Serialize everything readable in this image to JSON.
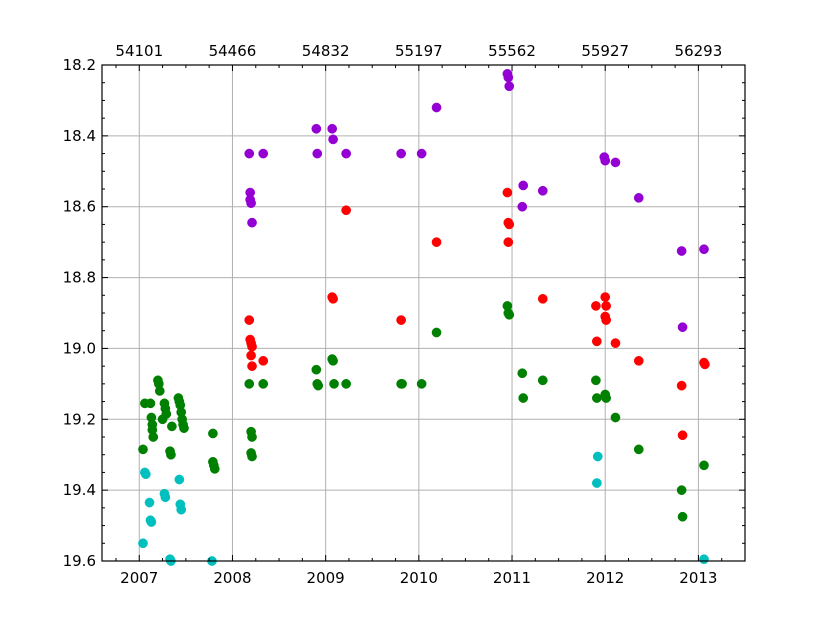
{
  "chart_data": {
    "type": "scatter",
    "title": "",
    "xlabel": "",
    "ylabel": "",
    "x_unit": "year",
    "xlim": [
      2006.6,
      2013.5
    ],
    "ylim": [
      19.6,
      18.2
    ],
    "y_inverted": true,
    "grid": true,
    "legend": "none",
    "x_ticks": [
      {
        "value": 2007,
        "label": "2007"
      },
      {
        "value": 2008,
        "label": "2008"
      },
      {
        "value": 2009,
        "label": "2009"
      },
      {
        "value": 2010,
        "label": "2010"
      },
      {
        "value": 2011,
        "label": "2011"
      },
      {
        "value": 2012,
        "label": "2012"
      },
      {
        "value": 2013,
        "label": "2013"
      }
    ],
    "x_top_ticks": [
      {
        "value": 2007,
        "label": "54101"
      },
      {
        "value": 2008,
        "label": "54466"
      },
      {
        "value": 2009,
        "label": "54832"
      },
      {
        "value": 2010,
        "label": "55197"
      },
      {
        "value": 2011,
        "label": "55562"
      },
      {
        "value": 2012,
        "label": "55927"
      },
      {
        "value": 2013,
        "label": "56293"
      }
    ],
    "y_ticks": [
      {
        "value": 18.2,
        "label": "18.2"
      },
      {
        "value": 18.4,
        "label": "18.4"
      },
      {
        "value": 18.6,
        "label": "18.6"
      },
      {
        "value": 18.8,
        "label": "18.8"
      },
      {
        "value": 19.0,
        "label": "19.0"
      },
      {
        "value": 19.2,
        "label": "19.2"
      },
      {
        "value": 19.4,
        "label": "19.4"
      },
      {
        "value": 19.6,
        "label": "19.6"
      }
    ],
    "series": [
      {
        "color": "#9400d3",
        "points": [
          [
            2008.18,
            18.45
          ],
          [
            2008.19,
            18.56
          ],
          [
            2008.19,
            18.58
          ],
          [
            2008.2,
            18.59
          ],
          [
            2008.21,
            18.645
          ],
          [
            2008.33,
            18.45
          ],
          [
            2008.9,
            18.38
          ],
          [
            2008.91,
            18.45
          ],
          [
            2009.07,
            18.38
          ],
          [
            2009.08,
            18.41
          ],
          [
            2009.22,
            18.45
          ],
          [
            2009.81,
            18.45
          ],
          [
            2010.03,
            18.45
          ],
          [
            2010.19,
            18.32
          ],
          [
            2010.95,
            18.225
          ],
          [
            2010.96,
            18.235
          ],
          [
            2010.97,
            18.26
          ],
          [
            2011.12,
            18.54
          ],
          [
            2011.11,
            18.6
          ],
          [
            2011.33,
            18.555
          ],
          [
            2011.99,
            18.46
          ],
          [
            2012.0,
            18.47
          ],
          [
            2012.11,
            18.475
          ],
          [
            2012.36,
            18.575
          ],
          [
            2012.82,
            18.725
          ],
          [
            2012.83,
            18.94
          ],
          [
            2013.06,
            18.72
          ]
        ]
      },
      {
        "color": "#ff0000",
        "points": [
          [
            2008.18,
            18.92
          ],
          [
            2008.19,
            18.975
          ],
          [
            2008.2,
            18.985
          ],
          [
            2008.21,
            18.995
          ],
          [
            2008.2,
            19.02
          ],
          [
            2008.21,
            19.05
          ],
          [
            2008.33,
            19.035
          ],
          [
            2009.07,
            18.855
          ],
          [
            2009.08,
            18.86
          ],
          [
            2009.22,
            18.61
          ],
          [
            2009.81,
            18.92
          ],
          [
            2010.19,
            18.7
          ],
          [
            2010.95,
            18.56
          ],
          [
            2010.96,
            18.645
          ],
          [
            2010.97,
            18.65
          ],
          [
            2010.96,
            18.7
          ],
          [
            2011.33,
            18.86
          ],
          [
            2011.9,
            18.88
          ],
          [
            2011.91,
            18.98
          ],
          [
            2012.0,
            18.855
          ],
          [
            2012.01,
            18.88
          ],
          [
            2012.0,
            18.91
          ],
          [
            2012.01,
            18.92
          ],
          [
            2012.11,
            18.985
          ],
          [
            2012.36,
            19.035
          ],
          [
            2012.82,
            19.105
          ],
          [
            2012.83,
            19.245
          ],
          [
            2013.06,
            19.04
          ],
          [
            2013.07,
            19.045
          ]
        ]
      },
      {
        "color": "#008000",
        "points": [
          [
            2007.04,
            19.285
          ],
          [
            2007.06,
            19.155
          ],
          [
            2007.12,
            19.155
          ],
          [
            2007.13,
            19.195
          ],
          [
            2007.14,
            19.215
          ],
          [
            2007.14,
            19.23
          ],
          [
            2007.15,
            19.25
          ],
          [
            2007.2,
            19.09
          ],
          [
            2007.21,
            19.1
          ],
          [
            2007.22,
            19.12
          ],
          [
            2007.25,
            19.2
          ],
          [
            2007.27,
            19.155
          ],
          [
            2007.28,
            19.17
          ],
          [
            2007.29,
            19.185
          ],
          [
            2007.33,
            19.29
          ],
          [
            2007.34,
            19.3
          ],
          [
            2007.35,
            19.22
          ],
          [
            2007.42,
            19.14
          ],
          [
            2007.43,
            19.15
          ],
          [
            2007.44,
            19.16
          ],
          [
            2007.45,
            19.18
          ],
          [
            2007.46,
            19.2
          ],
          [
            2007.47,
            19.215
          ],
          [
            2007.48,
            19.225
          ],
          [
            2007.79,
            19.24
          ],
          [
            2007.79,
            19.32
          ],
          [
            2007.8,
            19.33
          ],
          [
            2007.81,
            19.34
          ],
          [
            2008.18,
            19.1
          ],
          [
            2008.2,
            19.235
          ],
          [
            2008.21,
            19.25
          ],
          [
            2008.2,
            19.295
          ],
          [
            2008.21,
            19.305
          ],
          [
            2008.33,
            19.1
          ],
          [
            2008.9,
            19.06
          ],
          [
            2008.91,
            19.1
          ],
          [
            2008.92,
            19.105
          ],
          [
            2009.07,
            19.03
          ],
          [
            2009.08,
            19.035
          ],
          [
            2009.09,
            19.1
          ],
          [
            2009.22,
            19.1
          ],
          [
            2009.81,
            19.1
          ],
          [
            2009.82,
            19.1
          ],
          [
            2010.03,
            19.1
          ],
          [
            2010.19,
            18.955
          ],
          [
            2010.95,
            18.88
          ],
          [
            2010.96,
            18.9
          ],
          [
            2010.97,
            18.905
          ],
          [
            2011.11,
            19.07
          ],
          [
            2011.12,
            19.14
          ],
          [
            2011.33,
            19.09
          ],
          [
            2011.9,
            19.09
          ],
          [
            2011.91,
            19.14
          ],
          [
            2012.0,
            19.13
          ],
          [
            2012.01,
            19.14
          ],
          [
            2012.11,
            19.195
          ],
          [
            2012.36,
            19.285
          ],
          [
            2012.82,
            19.4
          ],
          [
            2012.83,
            19.475
          ],
          [
            2013.06,
            19.33
          ]
        ]
      },
      {
        "color": "#00bfbf",
        "points": [
          [
            2007.04,
            19.55
          ],
          [
            2007.06,
            19.35
          ],
          [
            2007.07,
            19.355
          ],
          [
            2007.11,
            19.435
          ],
          [
            2007.12,
            19.485
          ],
          [
            2007.13,
            19.49
          ],
          [
            2007.27,
            19.41
          ],
          [
            2007.28,
            19.42
          ],
          [
            2007.33,
            19.595
          ],
          [
            2007.34,
            19.6
          ],
          [
            2007.43,
            19.37
          ],
          [
            2007.44,
            19.44
          ],
          [
            2007.45,
            19.455
          ],
          [
            2007.78,
            19.6
          ],
          [
            2011.92,
            19.305
          ],
          [
            2011.91,
            19.38
          ],
          [
            2013.06,
            19.595
          ]
        ]
      }
    ]
  }
}
